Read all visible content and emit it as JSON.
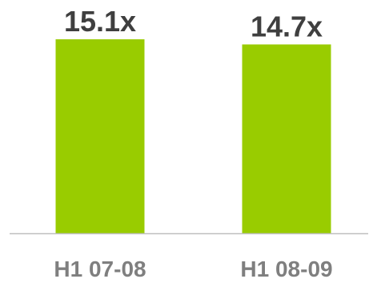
{
  "chart_data": {
    "type": "bar",
    "categories": [
      "H1 07-08",
      "H1 08-09"
    ],
    "values": [
      15.1,
      14.7
    ],
    "data_labels": [
      "15.1x",
      "14.7x"
    ],
    "title": "",
    "xlabel": "",
    "ylabel": "",
    "ylim": [
      0,
      16.1
    ],
    "grid": false,
    "legend": "none",
    "colors": {
      "bar": "#99cc00",
      "data_label": "#3f3f3f",
      "tick_label": "#7f7f7f",
      "axis": "#bfbfbf"
    }
  }
}
